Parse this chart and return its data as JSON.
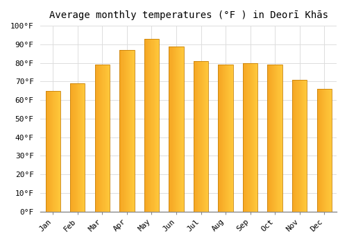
{
  "title": "Average monthly temperatures (°F ) in Deorī Khās",
  "months": [
    "Jan",
    "Feb",
    "Mar",
    "Apr",
    "May",
    "Jun",
    "Jul",
    "Aug",
    "Sep",
    "Oct",
    "Nov",
    "Dec"
  ],
  "values": [
    65,
    69,
    79,
    87,
    93,
    89,
    81,
    79,
    80,
    79,
    71,
    66
  ],
  "bar_color_left": "#F5A623",
  "bar_color_right": "#FFC93C",
  "bar_edge_color": "#C8820A",
  "background_color": "#FFFFFF",
  "ylim": [
    0,
    100
  ],
  "yticks": [
    0,
    10,
    20,
    30,
    40,
    50,
    60,
    70,
    80,
    90,
    100
  ],
  "ytick_labels": [
    "0°F",
    "10°F",
    "20°F",
    "30°F",
    "40°F",
    "50°F",
    "60°F",
    "70°F",
    "80°F",
    "90°F",
    "100°F"
  ],
  "title_fontsize": 10,
  "tick_fontsize": 8,
  "grid_color": "#DDDDDD",
  "figure_bg": "#FFFFFF",
  "bar_width": 0.6
}
